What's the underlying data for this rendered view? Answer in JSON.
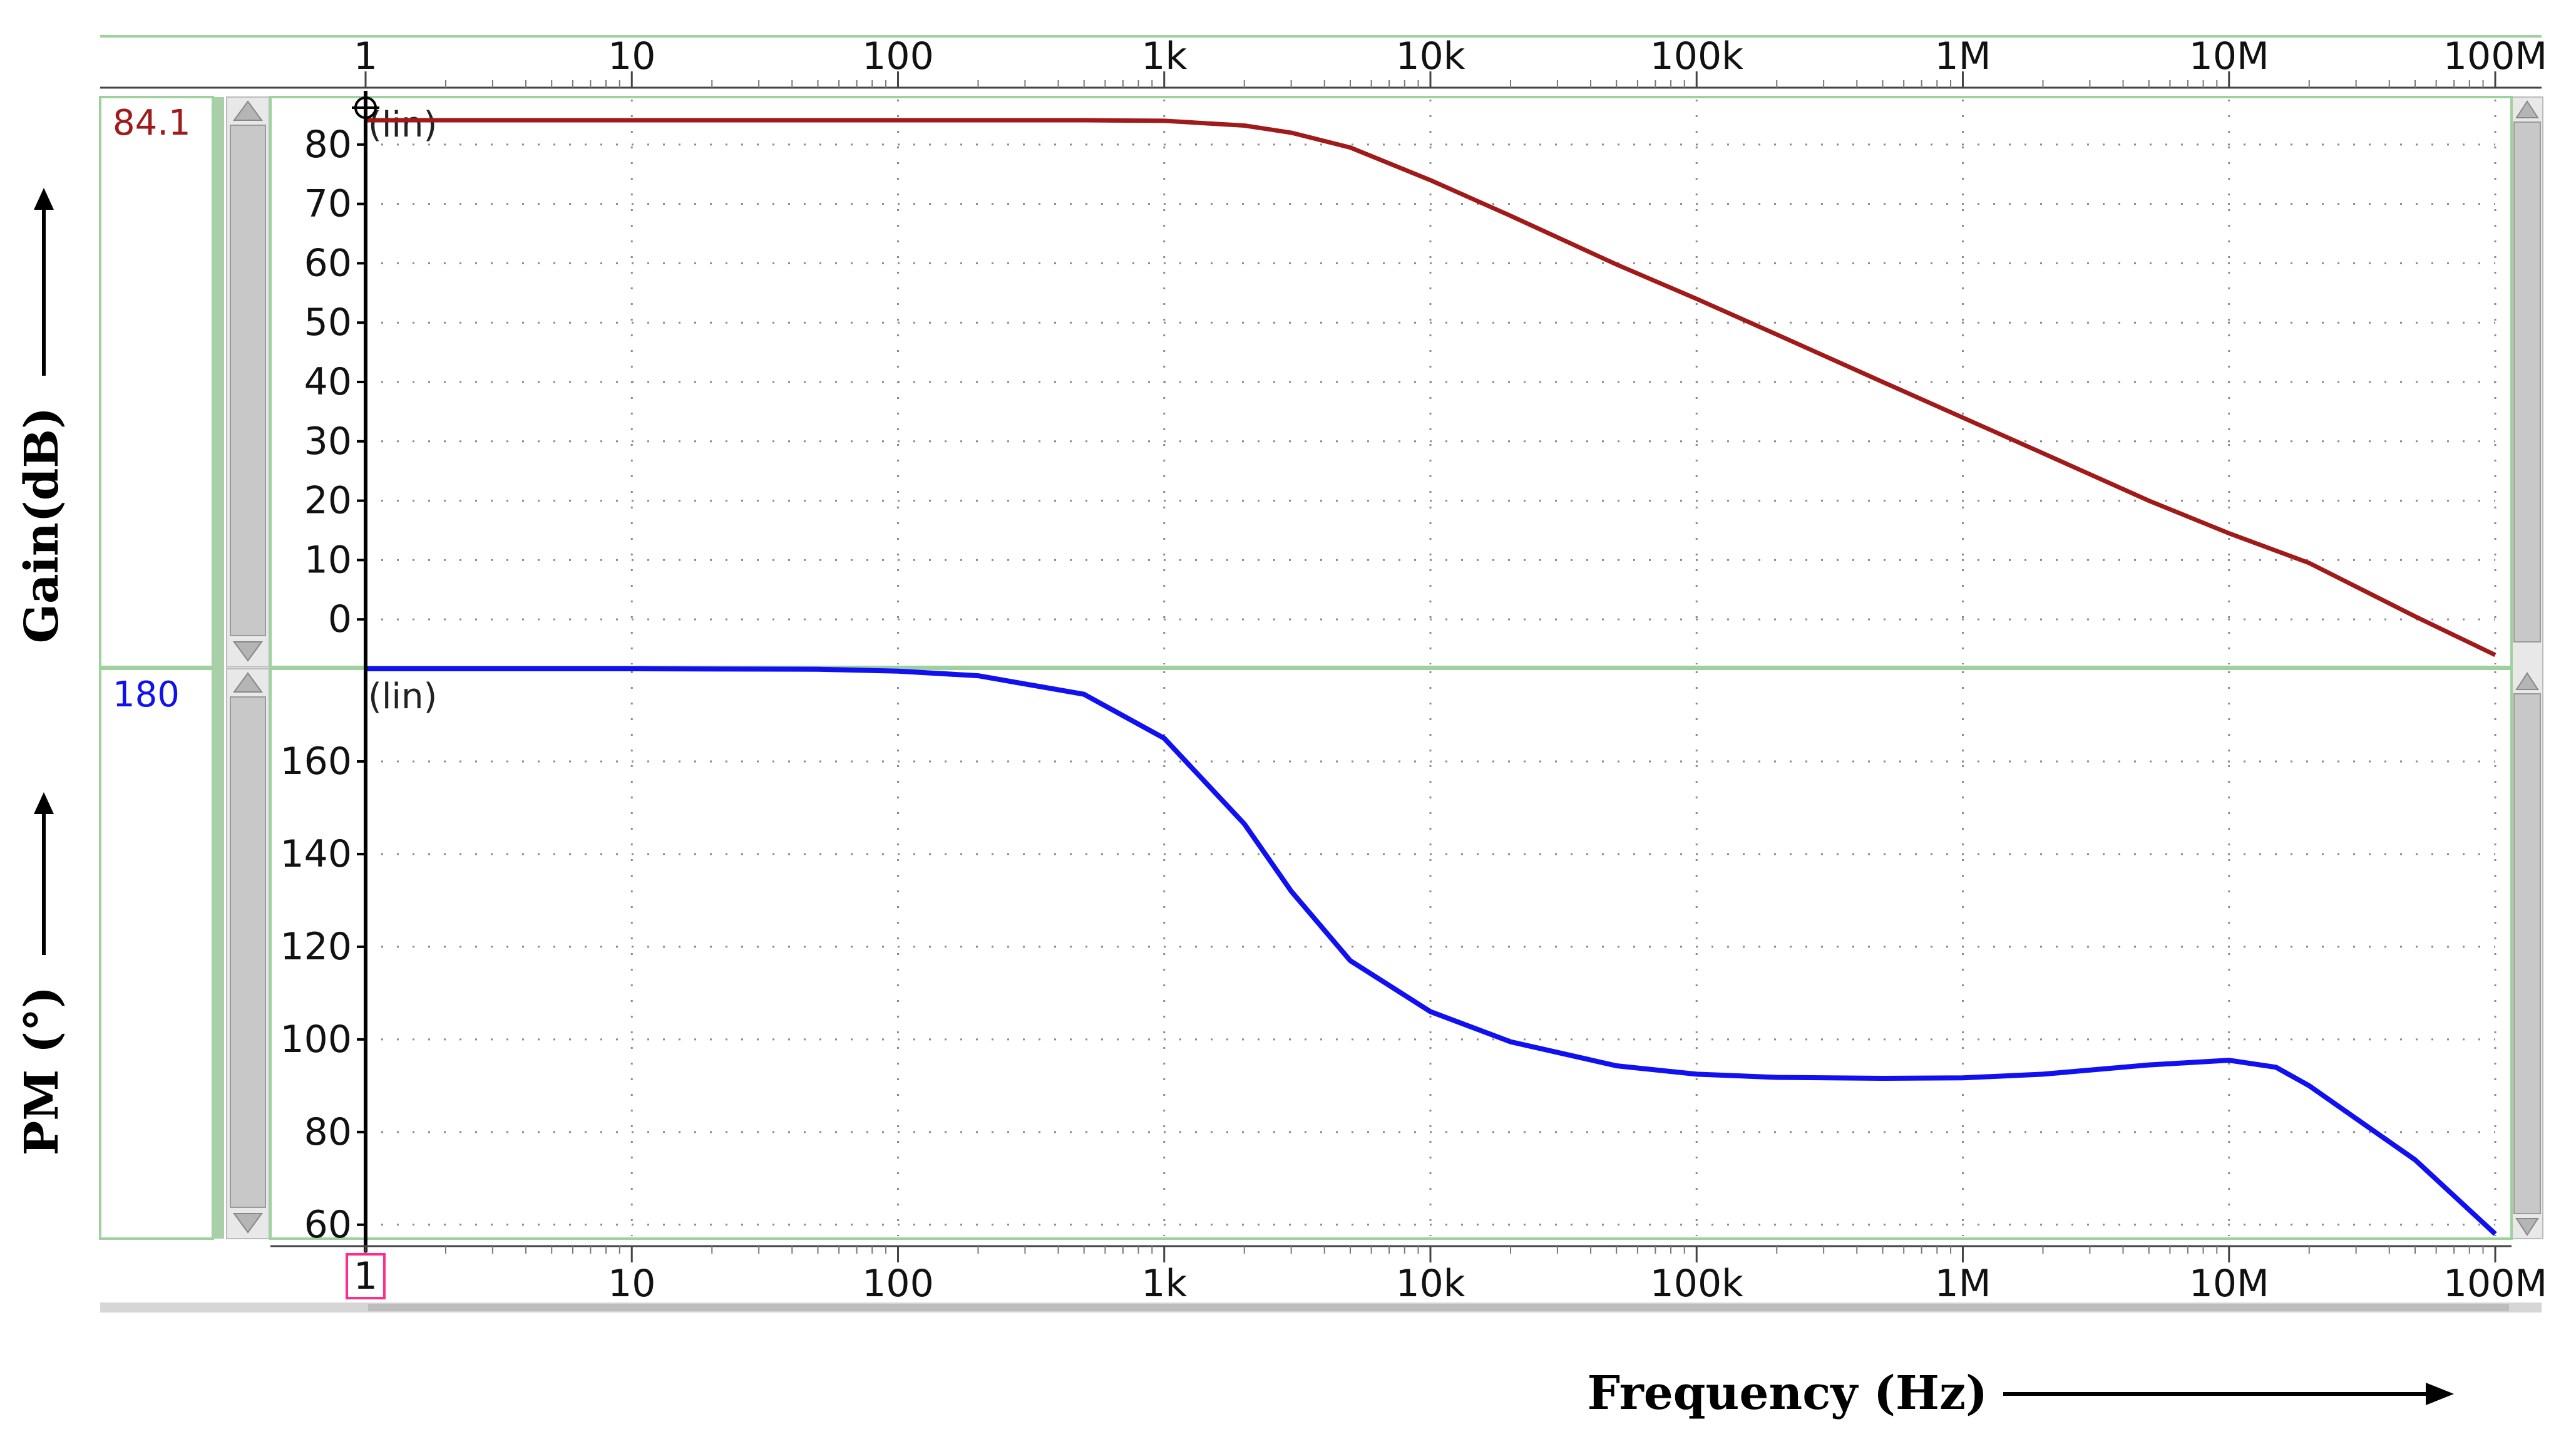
{
  "colors": {
    "gain_trace": "#a11a1a",
    "phase_trace": "#1010f0",
    "panel_border": "#9fd19f",
    "scrollbar": "#c8c8c8",
    "cursor_box": "#ff2d8a",
    "grid": "#8a8a8a"
  },
  "chart_data": [
    {
      "type": "line",
      "ylabel": "Gain(dB)",
      "xlabel": "Frequency (Hz)",
      "xscale": "log",
      "xlim": [
        1,
        100000000
      ],
      "ylim": [
        -8,
        88
      ],
      "yticks": [
        0,
        10,
        20,
        30,
        40,
        50,
        60,
        70,
        80
      ],
      "scale_tag": "(lin)",
      "cursor_value": "84.1",
      "series": [
        {
          "x": [
            1,
            10,
            100,
            500,
            1000,
            2000,
            3000,
            5000,
            10000,
            20000,
            50000,
            100000,
            200000,
            500000,
            1000000,
            2000000,
            5000000,
            10000000,
            20000000,
            50000000,
            100000000
          ],
          "y": [
            84.1,
            84.1,
            84.1,
            84.1,
            84.0,
            83.2,
            82.0,
            79.5,
            74.0,
            68.0,
            59.8,
            54.0,
            48.0,
            40.0,
            34.0,
            28.0,
            20.0,
            14.5,
            9.5,
            0.5,
            -6.0
          ]
        }
      ]
    },
    {
      "type": "line",
      "ylabel": "PM (°)",
      "xlabel": "Frequency (Hz)",
      "xscale": "log",
      "xlim": [
        1,
        100000000
      ],
      "ylim": [
        57,
        180
      ],
      "yticks": [
        60,
        80,
        100,
        120,
        140,
        160
      ],
      "scale_tag": "(lin)",
      "cursor_value": "180",
      "series": [
        {
          "x": [
            1,
            10,
            50,
            100,
            200,
            500,
            1000,
            2000,
            3000,
            5000,
            10000,
            20000,
            50000,
            100000,
            200000,
            500000,
            1000000,
            2000000,
            5000000,
            10000000,
            15000000,
            20000000,
            50000000,
            100000000
          ],
          "y": [
            180,
            180,
            179.9,
            179.5,
            178.5,
            174.5,
            165.0,
            146.5,
            132.0,
            117.0,
            106.0,
            99.5,
            94.3,
            92.5,
            91.8,
            91.6,
            91.7,
            92.5,
            94.5,
            95.5,
            94.0,
            90.0,
            74.0,
            58.0
          ]
        }
      ]
    }
  ],
  "x_ticks": [
    "1",
    "10",
    "100",
    "1k",
    "10k",
    "100k",
    "1M",
    "10M",
    "100M"
  ],
  "cursor_label": "1"
}
